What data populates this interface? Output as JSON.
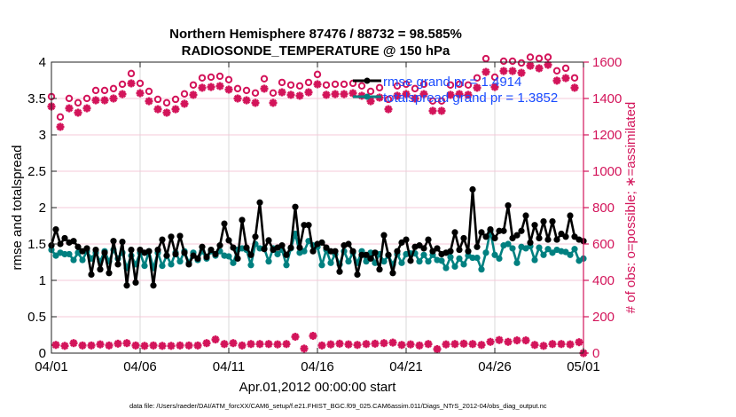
{
  "colors": {
    "rmse": "#000000",
    "spread": "#008080",
    "obs": "#d3145a",
    "legend_text": "#1a4cff"
  },
  "chart_data": {
    "type": "line",
    "title": [
      "Northern Hemisphere 87476 / 88732 = 98.585%",
      "RADIOSONDE_TEMPERATURE @ 150 hPa"
    ],
    "xlabel": "Apr.01,2012 00:00:00 start",
    "ylabel": "rmse and totalspread",
    "y2label": "# of obs: o=possible; ∗=assimilated",
    "footer": "data file: /Users/raeder/DAI/ATM_forcXX/CAM6_setup/f.e21.FHIST_BGC.f09_025.CAM6assim.011/Diags_NTrS_2012-04/obs_diag_output.nc",
    "xlim_days": [
      0,
      30
    ],
    "step_hours": 6,
    "xticks": {
      "days": [
        0,
        5,
        10,
        15,
        20,
        25,
        30
      ],
      "labels": [
        "04/01",
        "04/06",
        "04/11",
        "04/16",
        "04/21",
        "04/26",
        "05/01"
      ]
    },
    "ylim": [
      0,
      4
    ],
    "yticks": [
      "0",
      "0.5",
      "1",
      "1.5",
      "2",
      "2.5",
      "3",
      "3.5",
      "4"
    ],
    "y2lim": [
      0,
      1600
    ],
    "y2ticks": [
      "0",
      "200",
      "400",
      "600",
      "800",
      "1000",
      "1200",
      "1400",
      "1600"
    ],
    "grid": true,
    "legend": [
      {
        "name": "rmse grand pr = 1.4914",
        "series": "rmse"
      },
      {
        "name": "totalspread grand pr = 1.3852",
        "series": "spread"
      }
    ],
    "legend_placement": "top-right",
    "series": [
      {
        "name": "rmse",
        "axis": "left",
        "values": [
          1.48,
          1.7,
          1.5,
          1.58,
          1.52,
          1.54,
          1.46,
          1.4,
          1.44,
          1.08,
          1.42,
          1.15,
          1.38,
          1.1,
          1.54,
          1.22,
          1.53,
          0.93,
          1.42,
          0.97,
          1.42,
          1.38,
          1.4,
          0.93,
          1.42,
          1.56,
          1.34,
          1.6,
          1.36,
          1.61,
          1.38,
          1.22,
          1.34,
          1.3,
          1.46,
          1.32,
          1.42,
          1.36,
          1.48,
          1.78,
          1.55,
          1.45,
          1.3,
          1.83,
          1.45,
          1.35,
          1.6,
          2.07,
          1.43,
          1.55,
          1.42,
          1.45,
          1.48,
          1.35,
          1.45,
          2.01,
          1.45,
          1.76,
          1.76,
          1.4,
          1.5,
          1.52,
          1.45,
          1.4,
          1.4,
          1.12,
          1.48,
          1.5,
          1.4,
          1.08,
          1.35,
          1.35,
          1.3,
          1.38,
          1.15,
          1.62,
          1.35,
          1.1,
          1.4,
          1.52,
          1.56,
          1.27,
          1.46,
          1.48,
          1.44,
          1.56,
          1.4,
          1.44,
          1.36,
          1.38,
          1.4,
          1.66,
          1.42,
          1.58,
          1.4,
          2.25,
          1.46,
          1.66,
          1.6,
          1.7,
          1.58,
          1.68,
          1.68,
          2.03,
          1.58,
          1.62,
          1.68,
          1.89,
          1.52,
          1.76,
          1.58,
          1.81,
          1.56,
          1.81,
          1.56,
          1.64,
          1.6,
          1.89,
          1.6,
          1.56,
          1.54
        ]
      },
      {
        "name": "totalspread",
        "axis": "left",
        "values": [
          1.42,
          1.34,
          1.38,
          1.36,
          1.36,
          1.28,
          1.38,
          1.28,
          1.4,
          1.3,
          1.38,
          1.26,
          1.4,
          1.26,
          1.42,
          1.3,
          1.38,
          1.17,
          1.34,
          1.22,
          1.38,
          1.2,
          1.4,
          1.17,
          1.38,
          1.2,
          1.34,
          1.22,
          1.38,
          1.26,
          1.4,
          1.24,
          1.38,
          1.28,
          1.4,
          1.3,
          1.4,
          1.34,
          1.4,
          1.34,
          1.33,
          1.24,
          1.42,
          1.44,
          1.42,
          1.21,
          1.5,
          1.44,
          1.44,
          1.26,
          1.44,
          1.36,
          1.42,
          1.21,
          1.44,
          1.64,
          1.38,
          1.4,
          1.54,
          1.48,
          1.46,
          1.21,
          1.42,
          1.24,
          1.36,
          1.22,
          1.4,
          1.26,
          1.38,
          1.24,
          1.4,
          1.26,
          1.38,
          1.24,
          1.36,
          1.26,
          1.34,
          1.22,
          1.36,
          1.24,
          1.36,
          1.37,
          1.37,
          1.26,
          1.35,
          1.26,
          1.35,
          1.28,
          1.27,
          1.17,
          1.32,
          1.19,
          1.3,
          1.22,
          1.34,
          1.31,
          1.31,
          1.15,
          1.38,
          1.68,
          1.35,
          1.3,
          1.48,
          1.5,
          1.44,
          1.24,
          1.46,
          1.44,
          1.47,
          1.28,
          1.45,
          1.35,
          1.43,
          1.38,
          1.42,
          1.4,
          1.39,
          1.35,
          1.43,
          1.27,
          1.3
        ]
      },
      {
        "name": "obs assimilated (00/12Z)",
        "axis": "right",
        "values": [
          1356,
          1244,
          1346,
          1322,
          1346,
          1390,
          1390,
          1400,
          1424,
          1483,
          1429,
          1385,
          1341,
          1322,
          1341,
          1371,
          1420,
          1459,
          1463,
          1468,
          1449,
          1400,
          1390,
          1376,
          1454,
          1376,
          1434,
          1420,
          1415,
          1434,
          1478,
          1420,
          1424,
          1424,
          1429,
          1415,
          1385,
          1405,
          1341,
          1415,
          1424,
          1400,
          1424,
          1332,
          1332,
          1420,
          1424,
          1420,
          1459,
          1546,
          1463,
          1551,
          1551,
          1541,
          1580,
          1566,
          1585,
          1498,
          1512,
          1459,
          0
        ]
      },
      {
        "name": "obs possible (00/12Z)",
        "axis": "right",
        "values": [
          1381,
          1269,
          1371,
          1347,
          1371,
          1415,
          1415,
          1425,
          1449,
          1508,
          1454,
          1410,
          1366,
          1347,
          1366,
          1396,
          1445,
          1484,
          1488,
          1493,
          1474,
          1425,
          1415,
          1401,
          1479,
          1401,
          1459,
          1445,
          1440,
          1459,
          1503,
          1445,
          1449,
          1449,
          1454,
          1440,
          1410,
          1430,
          1366,
          1440,
          1449,
          1425,
          1449,
          1357,
          1357,
          1445,
          1449,
          1445,
          1484,
          1590,
          1488,
          1576,
          1576,
          1566,
          1598,
          1591,
          1598,
          1523,
          1537,
          1484,
          0
        ]
      },
      {
        "name": "obs assimilated (06/18Z)",
        "axis": "right",
        "values": [
          45,
          40,
          55,
          42,
          42,
          48,
          42,
          52,
          55,
          42,
          40,
          42,
          40,
          40,
          42,
          42,
          42,
          55,
          75,
          50,
          55,
          42,
          50,
          50,
          50,
          48,
          50,
          90,
          25,
          95,
          42,
          48,
          52,
          48,
          45,
          50,
          52,
          55,
          58,
          45,
          48,
          42,
          50,
          22,
          48,
          50,
          52,
          50,
          45,
          62,
          72,
          62,
          70,
          70,
          45,
          40,
          50,
          50,
          48,
          60
        ]
      }
    ]
  }
}
